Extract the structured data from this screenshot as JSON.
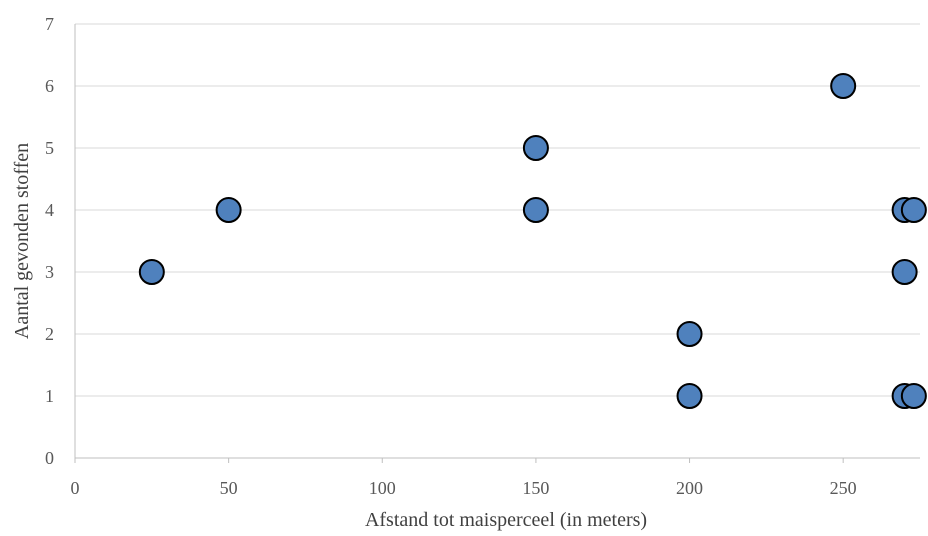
{
  "chart_data": {
    "type": "scatter",
    "title": "",
    "xlabel": "Afstand tot maisperceel (in meters)",
    "ylabel": "Aantal gevonden stoffen",
    "xlim": [
      0,
      275
    ],
    "ylim": [
      0,
      7
    ],
    "x_ticks": [
      0,
      50,
      100,
      150,
      200,
      250
    ],
    "y_ticks": [
      0,
      1,
      2,
      3,
      4,
      5,
      6,
      7
    ],
    "grid": "horizontal",
    "legend": "none",
    "marker_color": "#4f81bd",
    "marker_edge_color": "#000000",
    "points": [
      {
        "x": 25,
        "y": 3
      },
      {
        "x": 50,
        "y": 4
      },
      {
        "x": 150,
        "y": 5
      },
      {
        "x": 150,
        "y": 4
      },
      {
        "x": 200,
        "y": 2
      },
      {
        "x": 200,
        "y": 1
      },
      {
        "x": 250,
        "y": 6
      },
      {
        "x": 270,
        "y": 4
      },
      {
        "x": 273,
        "y": 4
      },
      {
        "x": 270,
        "y": 3
      },
      {
        "x": 270,
        "y": 1
      },
      {
        "x": 273,
        "y": 1
      }
    ]
  }
}
